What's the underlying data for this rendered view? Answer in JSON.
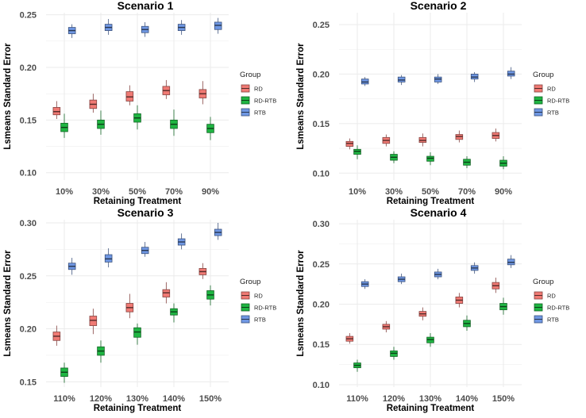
{
  "chart_data": [
    {
      "type": "boxplot",
      "title": "Scenario 1",
      "xlabel": "Retaining Treatment",
      "ylabel": "Lsmeans Standard Error",
      "categories": [
        "10%",
        "30%",
        "50%",
        "70%",
        "90%"
      ],
      "ylim": [
        0.093,
        0.252
      ],
      "yticks": [
        0.1,
        0.15,
        0.2,
        0.25
      ],
      "ytick_labels": [
        "0.10",
        "0.15",
        "0.20",
        "0.25"
      ],
      "legend_title": "Group",
      "series": [
        {
          "name": "RD",
          "boxes": [
            {
              "min": 0.151,
              "q1": 0.155,
              "median": 0.158,
              "q3": 0.162,
              "max": 0.168
            },
            {
              "min": 0.157,
              "q1": 0.161,
              "median": 0.165,
              "q3": 0.169,
              "max": 0.175
            },
            {
              "min": 0.164,
              "q1": 0.168,
              "median": 0.172,
              "q3": 0.177,
              "max": 0.183
            },
            {
              "min": 0.17,
              "q1": 0.174,
              "median": 0.178,
              "q3": 0.182,
              "max": 0.188
            },
            {
              "min": 0.165,
              "q1": 0.171,
              "median": 0.175,
              "q3": 0.179,
              "max": 0.187
            }
          ]
        },
        {
          "name": "RD-RTB",
          "boxes": [
            {
              "min": 0.133,
              "q1": 0.139,
              "median": 0.143,
              "q3": 0.147,
              "max": 0.156
            },
            {
              "min": 0.136,
              "q1": 0.142,
              "median": 0.146,
              "q3": 0.15,
              "max": 0.159
            },
            {
              "min": 0.141,
              "q1": 0.148,
              "median": 0.152,
              "q3": 0.156,
              "max": 0.164
            },
            {
              "min": 0.135,
              "q1": 0.142,
              "median": 0.146,
              "q3": 0.15,
              "max": 0.16
            },
            {
              "min": 0.131,
              "q1": 0.138,
              "median": 0.142,
              "q3": 0.146,
              "max": 0.153
            }
          ]
        },
        {
          "name": "RTB",
          "boxes": [
            {
              "min": 0.228,
              "q1": 0.232,
              "median": 0.235,
              "q3": 0.238,
              "max": 0.241
            },
            {
              "min": 0.231,
              "q1": 0.235,
              "median": 0.238,
              "q3": 0.241,
              "max": 0.246
            },
            {
              "min": 0.229,
              "q1": 0.233,
              "median": 0.236,
              "q3": 0.239,
              "max": 0.243
            },
            {
              "min": 0.231,
              "q1": 0.235,
              "median": 0.238,
              "q3": 0.241,
              "max": 0.245
            },
            {
              "min": 0.232,
              "q1": 0.236,
              "median": 0.24,
              "q3": 0.243,
              "max": 0.247
            }
          ]
        }
      ]
    },
    {
      "type": "boxplot",
      "title": "Scenario 2",
      "xlabel": "Retaining Treatment",
      "ylabel": "Lsmeans Standard Error",
      "categories": [
        "10%",
        "30%",
        "50%",
        "70%",
        "90%"
      ],
      "ylim": [
        0.093,
        0.262
      ],
      "yticks": [
        0.1,
        0.15,
        0.2,
        0.25
      ],
      "ytick_labels": [
        "0.10",
        "0.15",
        "0.20",
        "0.25"
      ],
      "legend_title": "Group",
      "series": [
        {
          "name": "RD",
          "boxes": [
            {
              "min": 0.124,
              "q1": 0.127,
              "median": 0.13,
              "q3": 0.132,
              "max": 0.135
            },
            {
              "min": 0.127,
              "q1": 0.13,
              "median": 0.133,
              "q3": 0.136,
              "max": 0.139
            },
            {
              "min": 0.127,
              "q1": 0.131,
              "median": 0.133,
              "q3": 0.136,
              "max": 0.14
            },
            {
              "min": 0.131,
              "q1": 0.134,
              "median": 0.137,
              "q3": 0.139,
              "max": 0.143
            },
            {
              "min": 0.132,
              "q1": 0.135,
              "median": 0.138,
              "q3": 0.141,
              "max": 0.145
            }
          ]
        },
        {
          "name": "RD-RTB",
          "boxes": [
            {
              "min": 0.114,
              "q1": 0.119,
              "median": 0.122,
              "q3": 0.124,
              "max": 0.128
            },
            {
              "min": 0.11,
              "q1": 0.113,
              "median": 0.116,
              "q3": 0.119,
              "max": 0.122
            },
            {
              "min": 0.108,
              "q1": 0.112,
              "median": 0.115,
              "q3": 0.117,
              "max": 0.121
            },
            {
              "min": 0.105,
              "q1": 0.108,
              "median": 0.111,
              "q3": 0.114,
              "max": 0.117
            },
            {
              "min": 0.104,
              "q1": 0.107,
              "median": 0.11,
              "q3": 0.113,
              "max": 0.117
            }
          ]
        },
        {
          "name": "RTB",
          "boxes": [
            {
              "min": 0.188,
              "q1": 0.19,
              "median": 0.192,
              "q3": 0.195,
              "max": 0.197
            },
            {
              "min": 0.189,
              "q1": 0.192,
              "median": 0.194,
              "q3": 0.197,
              "max": 0.199
            },
            {
              "min": 0.19,
              "q1": 0.192,
              "median": 0.195,
              "q3": 0.197,
              "max": 0.2
            },
            {
              "min": 0.192,
              "q1": 0.195,
              "median": 0.197,
              "q3": 0.2,
              "max": 0.202
            },
            {
              "min": 0.195,
              "q1": 0.198,
              "median": 0.2,
              "q3": 0.203,
              "max": 0.207
            }
          ]
        }
      ]
    },
    {
      "type": "boxplot",
      "title": "Scenario 3",
      "xlabel": "Retaining Treatment",
      "ylabel": "Lsmeans Standard Error",
      "categories": [
        "110%",
        "120%",
        "130%",
        "140%",
        "150%"
      ],
      "ylim": [
        0.145,
        0.303
      ],
      "yticks": [
        0.15,
        0.2,
        0.25,
        0.3
      ],
      "ytick_labels": [
        "0.15",
        "0.20",
        "0.25",
        "0.30"
      ],
      "legend_title": "Group",
      "series": [
        {
          "name": "RD",
          "boxes": [
            {
              "min": 0.184,
              "q1": 0.189,
              "median": 0.193,
              "q3": 0.197,
              "max": 0.203
            },
            {
              "min": 0.195,
              "q1": 0.203,
              "median": 0.208,
              "q3": 0.212,
              "max": 0.219
            },
            {
              "min": 0.21,
              "q1": 0.216,
              "median": 0.22,
              "q3": 0.224,
              "max": 0.233
            },
            {
              "min": 0.224,
              "q1": 0.23,
              "median": 0.234,
              "q3": 0.237,
              "max": 0.244
            },
            {
              "min": 0.247,
              "q1": 0.251,
              "median": 0.254,
              "q3": 0.257,
              "max": 0.262
            }
          ]
        },
        {
          "name": "RD-RTB",
          "boxes": [
            {
              "min": 0.149,
              "q1": 0.155,
              "median": 0.159,
              "q3": 0.163,
              "max": 0.168
            },
            {
              "min": 0.168,
              "q1": 0.175,
              "median": 0.179,
              "q3": 0.183,
              "max": 0.189
            },
            {
              "min": 0.185,
              "q1": 0.192,
              "median": 0.197,
              "q3": 0.201,
              "max": 0.205
            },
            {
              "min": 0.206,
              "q1": 0.213,
              "median": 0.216,
              "q3": 0.219,
              "max": 0.224
            },
            {
              "min": 0.222,
              "q1": 0.228,
              "median": 0.232,
              "q3": 0.236,
              "max": 0.241
            }
          ]
        },
        {
          "name": "RTB",
          "boxes": [
            {
              "min": 0.251,
              "q1": 0.256,
              "median": 0.259,
              "q3": 0.262,
              "max": 0.267
            },
            {
              "min": 0.258,
              "q1": 0.263,
              "median": 0.266,
              "q3": 0.27,
              "max": 0.276
            },
            {
              "min": 0.268,
              "q1": 0.271,
              "median": 0.274,
              "q3": 0.277,
              "max": 0.282
            },
            {
              "min": 0.275,
              "q1": 0.279,
              "median": 0.282,
              "q3": 0.285,
              "max": 0.29
            },
            {
              "min": 0.284,
              "q1": 0.288,
              "median": 0.291,
              "q3": 0.294,
              "max": 0.3
            }
          ]
        }
      ]
    },
    {
      "type": "boxplot",
      "title": "Scenario 4",
      "xlabel": "Retaining Treatment",
      "ylabel": "Lsmeans Standard Error",
      "categories": [
        "110%",
        "120%",
        "130%",
        "140%",
        "150%"
      ],
      "ylim": [
        0.097,
        0.305
      ],
      "yticks": [
        0.1,
        0.15,
        0.2,
        0.25,
        0.3
      ],
      "ytick_labels": [
        "0.10",
        "0.15",
        "0.20",
        "0.25",
        "0.30"
      ],
      "legend_title": "Group",
      "series": [
        {
          "name": "RD",
          "boxes": [
            {
              "min": 0.151,
              "q1": 0.154,
              "median": 0.157,
              "q3": 0.16,
              "max": 0.164
            },
            {
              "min": 0.165,
              "q1": 0.169,
              "median": 0.172,
              "q3": 0.175,
              "max": 0.179
            },
            {
              "min": 0.18,
              "q1": 0.185,
              "median": 0.188,
              "q3": 0.191,
              "max": 0.196
            },
            {
              "min": 0.196,
              "q1": 0.201,
              "median": 0.205,
              "q3": 0.209,
              "max": 0.214
            },
            {
              "min": 0.214,
              "q1": 0.219,
              "median": 0.223,
              "q3": 0.227,
              "max": 0.233
            }
          ]
        },
        {
          "name": "RD-RTB",
          "boxes": [
            {
              "min": 0.116,
              "q1": 0.121,
              "median": 0.124,
              "q3": 0.127,
              "max": 0.131
            },
            {
              "min": 0.131,
              "q1": 0.135,
              "median": 0.139,
              "q3": 0.142,
              "max": 0.147
            },
            {
              "min": 0.147,
              "q1": 0.152,
              "median": 0.156,
              "q3": 0.159,
              "max": 0.164
            },
            {
              "min": 0.167,
              "q1": 0.172,
              "median": 0.176,
              "q3": 0.18,
              "max": 0.186
            },
            {
              "min": 0.187,
              "q1": 0.193,
              "median": 0.197,
              "q3": 0.201,
              "max": 0.208
            }
          ]
        },
        {
          "name": "RTB",
          "boxes": [
            {
              "min": 0.219,
              "q1": 0.222,
              "median": 0.225,
              "q3": 0.228,
              "max": 0.231
            },
            {
              "min": 0.225,
              "q1": 0.228,
              "median": 0.231,
              "q3": 0.234,
              "max": 0.238
            },
            {
              "min": 0.231,
              "q1": 0.234,
              "median": 0.237,
              "q3": 0.24,
              "max": 0.244
            },
            {
              "min": 0.238,
              "q1": 0.242,
              "median": 0.245,
              "q3": 0.248,
              "max": 0.252
            },
            {
              "min": 0.245,
              "q1": 0.249,
              "median": 0.252,
              "q3": 0.256,
              "max": 0.261
            }
          ]
        }
      ]
    }
  ],
  "colors": {
    "RD": "#F07A74",
    "RD-RTB": "#1FB542",
    "RTB": "#6F97E3",
    "grid": "#EBEBEB"
  }
}
